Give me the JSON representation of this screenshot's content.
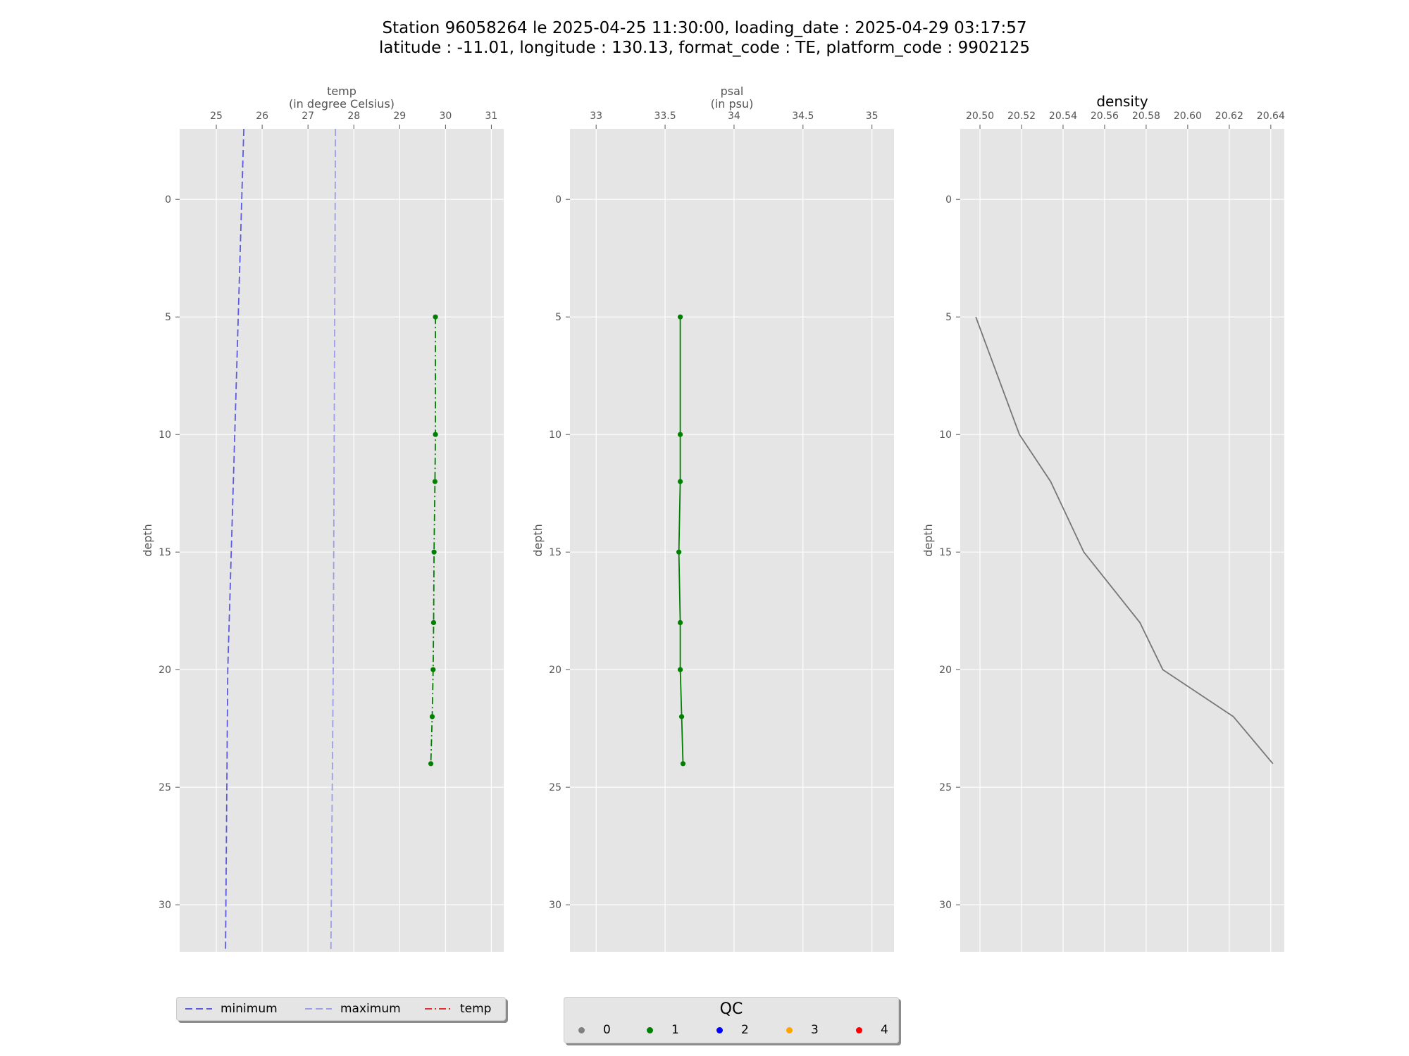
{
  "title": {
    "line1": "Station 96058264 le 2025-04-25 11:30:00, loading_date : 2025-04-29 03:17:57",
    "line2": "latitude : -11.01, longitude : 130.13, format_code : TE, platform_code : 9902125"
  },
  "chart_data": [
    {
      "type": "line",
      "title": "temp\n(in degree Celsius)",
      "xlabel": "temp\n(in degree Celsius)",
      "ylabel": "depth",
      "xlim": [
        24.2,
        31.27
      ],
      "ylim": [
        32,
        -3
      ],
      "xticks": [
        25,
        26,
        27,
        28,
        29,
        30,
        31
      ],
      "yticks": [
        0,
        5,
        10,
        15,
        20,
        25,
        30
      ],
      "grid": true,
      "series": [
        {
          "name": "minimum",
          "style": "dashed",
          "color": "#5b5be0",
          "x": [
            25.6,
            25.25,
            25.2
          ],
          "y": [
            -3,
            20,
            32
          ]
        },
        {
          "name": "maximum",
          "style": "dashed",
          "color": "#9e9ee8",
          "x": [
            27.6,
            27.55,
            27.5
          ],
          "y": [
            -3,
            20,
            32
          ]
        },
        {
          "name": "temp",
          "style": "dashdot",
          "color": "#008000",
          "markers": true,
          "x": [
            29.78,
            29.78,
            29.77,
            29.75,
            29.74,
            29.73,
            29.71,
            29.68
          ],
          "y": [
            5,
            10,
            12,
            15,
            18,
            20,
            22,
            24
          ]
        }
      ]
    },
    {
      "type": "line",
      "title": "psal\n(in psu)",
      "xlabel": "psal\n(in psu)",
      "ylabel": "depth",
      "xlim": [
        32.81,
        35.16
      ],
      "ylim": [
        32,
        -3
      ],
      "xticks": [
        33.0,
        33.5,
        34.0,
        34.5,
        35.0
      ],
      "yticks": [
        0,
        5,
        10,
        15,
        20,
        25,
        30
      ],
      "grid": true,
      "series": [
        {
          "name": "psal",
          "style": "solid",
          "color": "#008000",
          "markers": true,
          "x": [
            33.61,
            33.61,
            33.61,
            33.6,
            33.61,
            33.61,
            33.62,
            33.63
          ],
          "y": [
            5,
            10,
            12,
            15,
            18,
            20,
            22,
            24
          ]
        }
      ]
    },
    {
      "type": "line",
      "title": "density",
      "xlabel": "density",
      "ylabel": "depth",
      "xlim": [
        20.4905,
        20.6465
      ],
      "ylim": [
        32,
        -3
      ],
      "xticks": [
        20.5,
        20.52,
        20.54,
        20.56,
        20.58,
        20.6,
        20.62,
        20.64
      ],
      "xtick_labels": [
        "20.50",
        "20.52",
        "20.54",
        "20.56",
        "20.58",
        "20.60",
        "20.62",
        "20.64"
      ],
      "yticks": [
        0,
        5,
        10,
        15,
        20,
        25,
        30
      ],
      "grid": true,
      "series": [
        {
          "name": "density",
          "style": "solid",
          "color": "#777777",
          "markers": false,
          "x": [
            20.498,
            20.519,
            20.534,
            20.55,
            20.577,
            20.588,
            20.622,
            20.641
          ],
          "y": [
            5,
            10,
            12,
            15,
            18,
            20,
            22,
            24
          ]
        }
      ]
    }
  ],
  "legend1": {
    "items": [
      {
        "label": "minimum",
        "color": "#5b5be0",
        "style": "dashed"
      },
      {
        "label": "maximum",
        "color": "#9e9ee8",
        "style": "dashed"
      },
      {
        "label": "temp",
        "color": "#e03030",
        "style": "dashdot"
      }
    ]
  },
  "legend2": {
    "title": "QC",
    "items": [
      {
        "label": "0",
        "color": "#808080"
      },
      {
        "label": "1",
        "color": "#008000"
      },
      {
        "label": "2",
        "color": "#0000ff"
      },
      {
        "label": "3",
        "color": "#ffa500"
      },
      {
        "label": "4",
        "color": "#ff0000"
      }
    ]
  }
}
